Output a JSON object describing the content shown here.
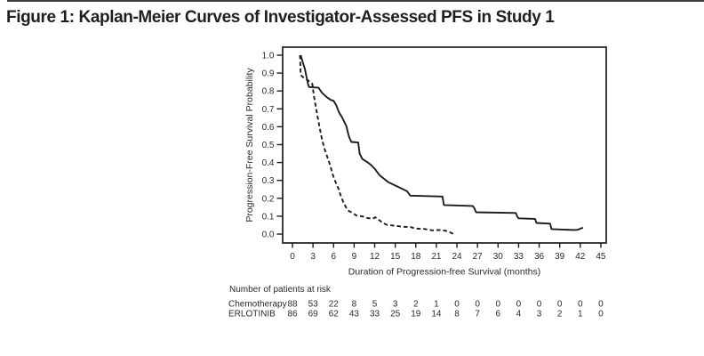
{
  "figure": {
    "title": "Figure 1: Kaplan-Meier Curves of Investigator-Assessed PFS in Study 1"
  },
  "colors": {
    "ink": "#1c1c1c",
    "axis_text": "#2b2b2b",
    "top_rule": "#3c3c3c"
  },
  "chart_data": {
    "type": "line",
    "subtype": "kaplan-meier",
    "title": "",
    "xlabel": "Duration of Progression-free Survival (months)",
    "ylabel": "Progression-Free Survival Probability",
    "xlim": [
      0,
      45
    ],
    "ylim": [
      0.0,
      1.0
    ],
    "x_ticks": [
      0,
      3,
      6,
      9,
      12,
      15,
      18,
      21,
      24,
      27,
      30,
      33,
      36,
      39,
      42,
      45
    ],
    "y_ticks": [
      0.0,
      0.1,
      0.2,
      0.3,
      0.4,
      0.5,
      0.6,
      0.7,
      0.8,
      0.9,
      1.0
    ],
    "grid": false,
    "legend": "none",
    "series": [
      {
        "name": "ERLOTINIB",
        "line_style": "solid",
        "points": [
          [
            1.2,
            1.0
          ],
          [
            1.5,
            0.96
          ],
          [
            1.8,
            0.925
          ],
          [
            2.1,
            0.87
          ],
          [
            2.3,
            0.835
          ],
          [
            2.45,
            0.822
          ],
          [
            3.8,
            0.818
          ],
          [
            4.3,
            0.79
          ],
          [
            5.0,
            0.765
          ],
          [
            5.6,
            0.75
          ],
          [
            6.0,
            0.745
          ],
          [
            6.4,
            0.72
          ],
          [
            6.8,
            0.68
          ],
          [
            7.2,
            0.655
          ],
          [
            7.6,
            0.625
          ],
          [
            7.9,
            0.6
          ],
          [
            8.1,
            0.565
          ],
          [
            8.3,
            0.54
          ],
          [
            8.6,
            0.515
          ],
          [
            9.6,
            0.512
          ],
          [
            9.8,
            0.45
          ],
          [
            10.2,
            0.42
          ],
          [
            11.0,
            0.4
          ],
          [
            11.5,
            0.385
          ],
          [
            12.0,
            0.365
          ],
          [
            12.7,
            0.33
          ],
          [
            14.0,
            0.29
          ],
          [
            15.4,
            0.264
          ],
          [
            16.2,
            0.25
          ],
          [
            16.7,
            0.24
          ],
          [
            17.2,
            0.215
          ],
          [
            21.9,
            0.21
          ],
          [
            22.1,
            0.162
          ],
          [
            26.3,
            0.157
          ],
          [
            26.5,
            0.148
          ],
          [
            26.8,
            0.122
          ],
          [
            32.6,
            0.118
          ],
          [
            32.8,
            0.098
          ],
          [
            33.0,
            0.088
          ],
          [
            35.4,
            0.085
          ],
          [
            35.6,
            0.062
          ],
          [
            37.6,
            0.058
          ],
          [
            37.8,
            0.028
          ],
          [
            41.0,
            0.023
          ],
          [
            41.6,
            0.024
          ],
          [
            42.1,
            0.032
          ],
          [
            42.4,
            0.036
          ]
        ]
      },
      {
        "name": "Chemotherapy",
        "line_style": "dashed",
        "points": [
          [
            1.1,
            1.0
          ],
          [
            1.2,
            0.89
          ],
          [
            1.6,
            0.875
          ],
          [
            2.4,
            0.855
          ],
          [
            2.9,
            0.84
          ],
          [
            3.1,
            0.78
          ],
          [
            3.4,
            0.715
          ],
          [
            3.7,
            0.65
          ],
          [
            4.0,
            0.59
          ],
          [
            4.3,
            0.53
          ],
          [
            4.7,
            0.475
          ],
          [
            5.1,
            0.43
          ],
          [
            5.5,
            0.385
          ],
          [
            5.9,
            0.33
          ],
          [
            6.2,
            0.3
          ],
          [
            6.5,
            0.27
          ],
          [
            6.7,
            0.255
          ],
          [
            7.0,
            0.22
          ],
          [
            7.4,
            0.18
          ],
          [
            7.8,
            0.15
          ],
          [
            8.2,
            0.13
          ],
          [
            8.8,
            0.118
          ],
          [
            9.3,
            0.104
          ],
          [
            10.3,
            0.098
          ],
          [
            10.9,
            0.09
          ],
          [
            11.7,
            0.086
          ],
          [
            12.1,
            0.094
          ],
          [
            12.6,
            0.08
          ],
          [
            13.1,
            0.064
          ],
          [
            13.8,
            0.051
          ],
          [
            15.2,
            0.046
          ],
          [
            16.0,
            0.041
          ],
          [
            17.3,
            0.039
          ],
          [
            17.9,
            0.031
          ],
          [
            19.2,
            0.029
          ],
          [
            20.4,
            0.021
          ],
          [
            21.7,
            0.023
          ],
          [
            22.5,
            0.017
          ],
          [
            23.1,
            0.008
          ],
          [
            23.45,
            0.001
          ]
        ]
      }
    ]
  },
  "risk_table": {
    "heading": "Number of patients at risk",
    "months": [
      0,
      3,
      6,
      9,
      12,
      15,
      18,
      21,
      24,
      27,
      30,
      33,
      36,
      39,
      42,
      45
    ],
    "rows": [
      {
        "label": "Chemotherapy",
        "values": [
          88,
          53,
          22,
          8,
          5,
          3,
          2,
          1,
          0,
          0,
          0,
          0,
          0,
          0,
          0,
          0
        ]
      },
      {
        "label": "ERLOTINIB",
        "values": [
          86,
          69,
          62,
          43,
          33,
          25,
          19,
          14,
          8,
          7,
          6,
          4,
          3,
          2,
          1,
          0
        ]
      }
    ]
  }
}
